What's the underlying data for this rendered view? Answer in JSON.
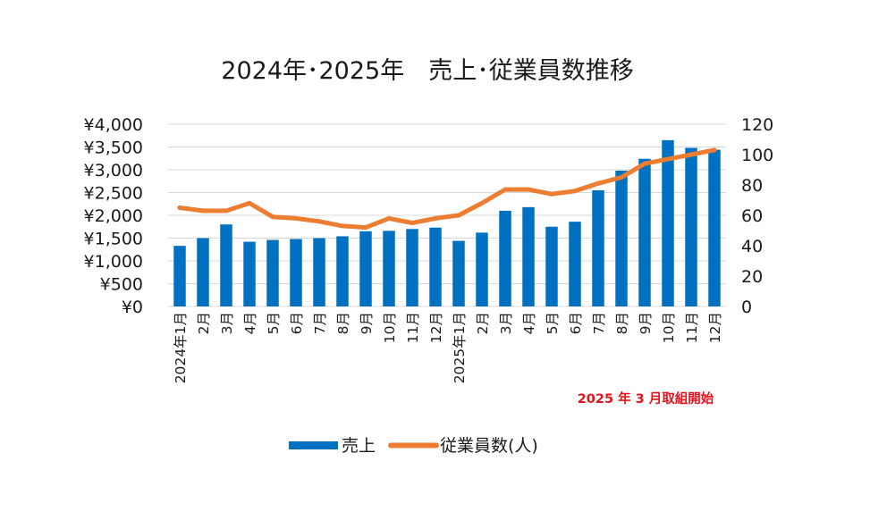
{
  "chart_data": {
    "type": "bar",
    "title": "2024年･2025年　売上･従業員数推移",
    "categories": [
      "2024年1月",
      "2月",
      "3月",
      "4月",
      "5月",
      "6月",
      "7月",
      "8月",
      "9月",
      "10月",
      "11月",
      "12月",
      "2025年1月",
      "2月",
      "3月",
      "4月",
      "5月",
      "6月",
      "7月",
      "8月",
      "9月",
      "10月",
      "11月",
      "12月"
    ],
    "series": [
      {
        "name": "売上",
        "type": "bar",
        "axis": "left",
        "color": "#0070C0",
        "values": [
          1330,
          1500,
          1800,
          1420,
          1460,
          1480,
          1500,
          1540,
          1650,
          1660,
          1700,
          1730,
          1440,
          1620,
          2100,
          2180,
          1750,
          1860,
          2550,
          2980,
          3240,
          3650,
          3480,
          3440
        ]
      },
      {
        "name": "従業員数(人)",
        "type": "line",
        "axis": "right",
        "color": "#ED7D31",
        "values": [
          65,
          63,
          63,
          68,
          59,
          58,
          56,
          53,
          52,
          58,
          55,
          58,
          60,
          68,
          77,
          77,
          74,
          76,
          81,
          85,
          94,
          97,
          100,
          103
        ]
      }
    ],
    "y_left": {
      "ylim": [
        0,
        4000
      ],
      "ticks": [
        "¥0",
        "¥500",
        "¥1,000",
        "¥1,500",
        "¥2,000",
        "¥2,500",
        "¥3,000",
        "¥3,500",
        "¥4,000"
      ]
    },
    "y_right": {
      "ylim": [
        0,
        120
      ],
      "ticks": [
        "0",
        "20",
        "40",
        "60",
        "80",
        "100",
        "120"
      ]
    },
    "grid": true,
    "legend_position": "bottom",
    "annotation": "2025 年 3 月取組開始"
  }
}
